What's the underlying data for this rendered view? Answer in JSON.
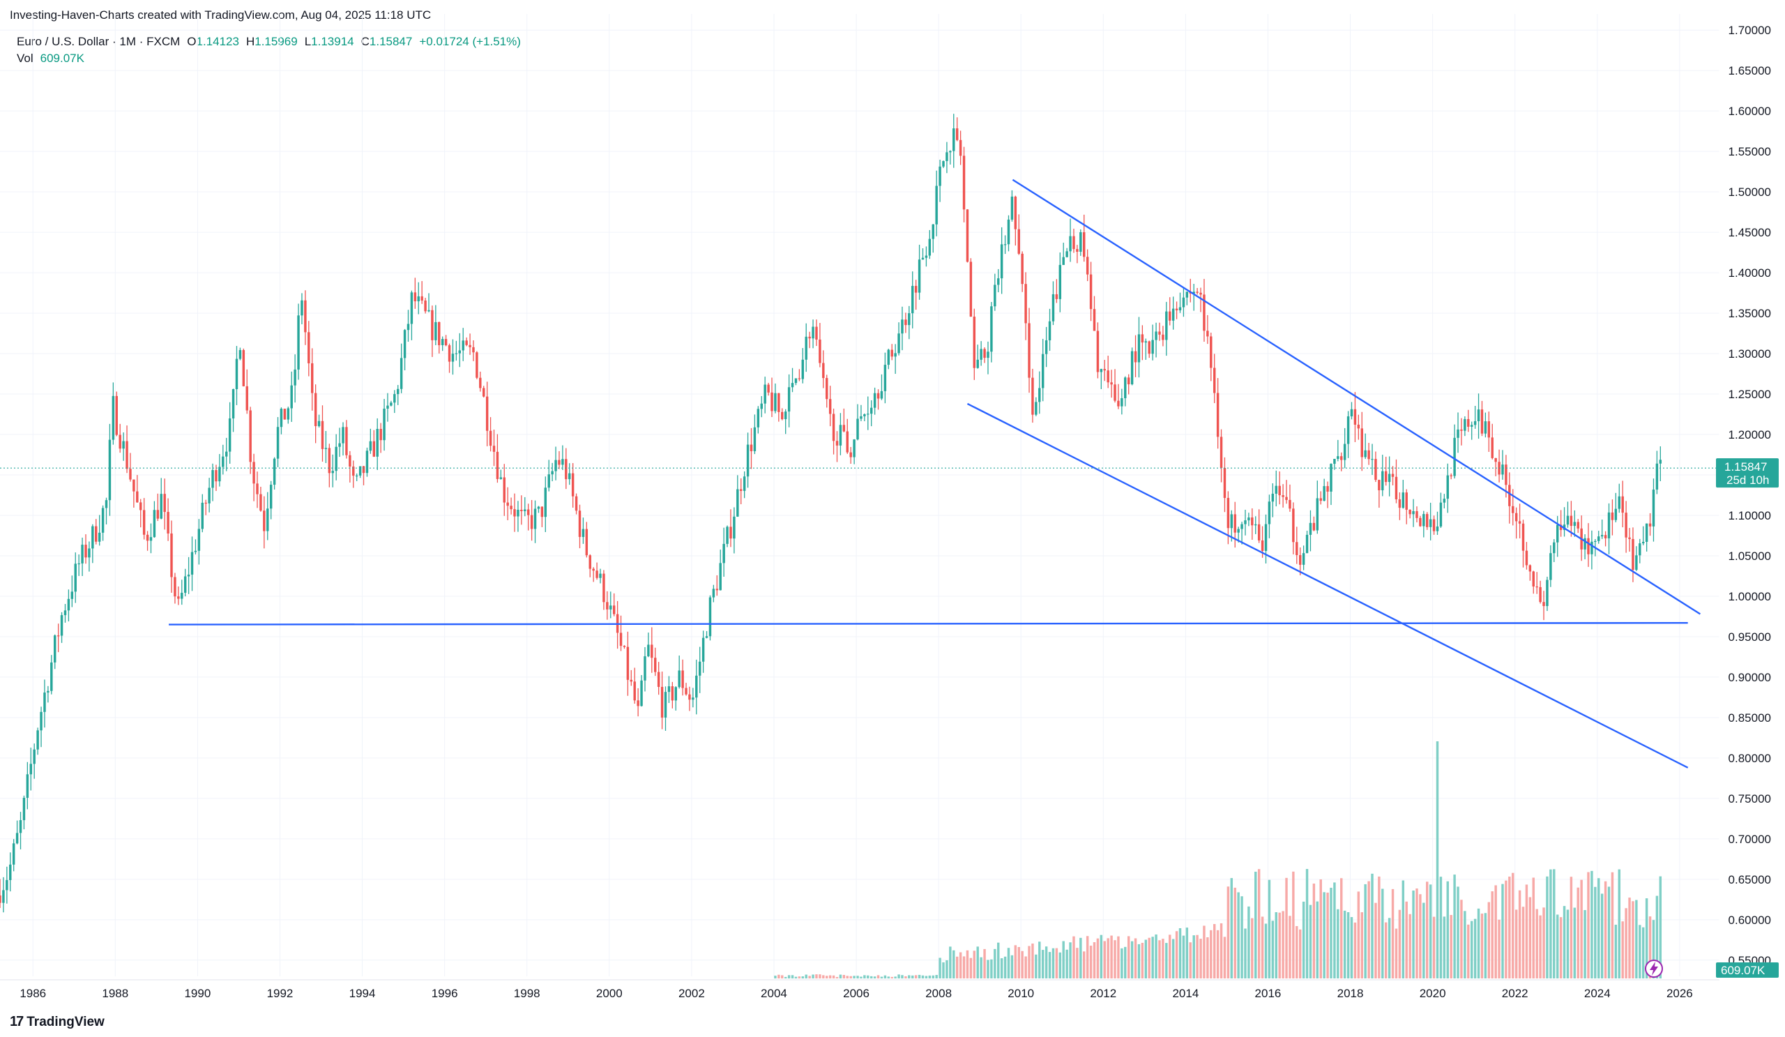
{
  "header": {
    "attribution": "Investing-Haven-Charts created with TradingView.com, Aug 04, 2025 11:18 UTC",
    "symbol": "Euro / U.S. Dollar · 1M · FXCM",
    "open_label": "O",
    "open": "1.14123",
    "high_label": "H",
    "high": "1.15969",
    "low_label": "L",
    "low": "1.13914",
    "close_label": "C",
    "close": "1.15847",
    "change": "+0.01724 (+1.51%)",
    "vol_label": "Vol",
    "vol": "609.07K"
  },
  "price_tag": {
    "price": "1.15847",
    "countdown": "25d 10h",
    "value": 1.15847
  },
  "volume_tag": "609.07K",
  "brand": "TradingView",
  "colors": {
    "up": "#26a69a",
    "down": "#ef5350",
    "trend": "#2962ff",
    "vol_up": "#7fcfc6",
    "vol_down": "#f7a9a7"
  },
  "chart_data": {
    "type": "candlestick",
    "symbol": "EURUSD",
    "interval": "1M",
    "y_ticks": [
      "0.55000",
      "0.60000",
      "0.65000",
      "0.70000",
      "0.75000",
      "0.80000",
      "0.85000",
      "0.90000",
      "0.95000",
      "1.00000",
      "1.05000",
      "1.10000",
      "1.15000",
      "1.20000",
      "1.25000",
      "1.30000",
      "1.35000",
      "1.40000",
      "1.45000",
      "1.50000",
      "1.55000",
      "1.60000",
      "1.65000",
      "1.70000"
    ],
    "ylim": [
      0.53,
      1.72
    ],
    "x_ticks": [
      "1986",
      "1988",
      "1990",
      "1992",
      "1994",
      "1996",
      "1998",
      "2000",
      "2002",
      "2004",
      "2006",
      "2008",
      "2010",
      "2012",
      "2014",
      "2016",
      "2018",
      "2020",
      "2022",
      "2024",
      "2026"
    ],
    "xlim": [
      1985.2,
      2026.9
    ],
    "price_path": [
      [
        1985.2,
        0.63
      ],
      [
        1985.5,
        0.66
      ],
      [
        1985.8,
        0.72
      ],
      [
        1986.2,
        0.84
      ],
      [
        1986.5,
        0.91
      ],
      [
        1986.8,
        0.98
      ],
      [
        1987.2,
        1.04
      ],
      [
        1987.6,
        1.08
      ],
      [
        1987.9,
        1.12
      ],
      [
        1988.0,
        1.24
      ],
      [
        1988.4,
        1.16
      ],
      [
        1988.8,
        1.07
      ],
      [
        1989.2,
        1.12
      ],
      [
        1989.6,
        0.98
      ],
      [
        1990.0,
        1.06
      ],
      [
        1990.4,
        1.14
      ],
      [
        1990.9,
        1.21
      ],
      [
        1991.1,
        1.33
      ],
      [
        1991.4,
        1.16
      ],
      [
        1991.7,
        1.09
      ],
      [
        1992.0,
        1.2
      ],
      [
        1992.4,
        1.25
      ],
      [
        1992.6,
        1.38
      ],
      [
        1992.9,
        1.22
      ],
      [
        1993.3,
        1.16
      ],
      [
        1993.6,
        1.2
      ],
      [
        1993.9,
        1.13
      ],
      [
        1994.4,
        1.19
      ],
      [
        1994.9,
        1.25
      ],
      [
        1995.3,
        1.37
      ],
      [
        1995.8,
        1.33
      ],
      [
        1996.3,
        1.3
      ],
      [
        1996.8,
        1.3
      ],
      [
        1997.0,
        1.25
      ],
      [
        1997.5,
        1.13
      ],
      [
        1998.0,
        1.09
      ],
      [
        1998.4,
        1.1
      ],
      [
        1998.8,
        1.17
      ],
      [
        1999.0,
        1.16
      ],
      [
        1999.5,
        1.06
      ],
      [
        2000.0,
        1.0
      ],
      [
        2000.4,
        0.93
      ],
      [
        2000.8,
        0.85
      ],
      [
        2001.0,
        0.94
      ],
      [
        2001.4,
        0.86
      ],
      [
        2001.8,
        0.9
      ],
      [
        2002.1,
        0.87
      ],
      [
        2002.5,
        0.98
      ],
      [
        2003.0,
        1.08
      ],
      [
        2003.4,
        1.17
      ],
      [
        2003.9,
        1.25
      ],
      [
        2004.3,
        1.22
      ],
      [
        2004.8,
        1.3
      ],
      [
        2005.0,
        1.34
      ],
      [
        2005.4,
        1.22
      ],
      [
        2005.9,
        1.18
      ],
      [
        2006.2,
        1.22
      ],
      [
        2006.8,
        1.28
      ],
      [
        2007.3,
        1.35
      ],
      [
        2007.9,
        1.46
      ],
      [
        2008.3,
        1.57
      ],
      [
        2008.6,
        1.56
      ],
      [
        2008.9,
        1.3
      ],
      [
        2009.2,
        1.29
      ],
      [
        2009.6,
        1.42
      ],
      [
        2009.9,
        1.49
      ],
      [
        2010.4,
        1.22
      ],
      [
        2010.9,
        1.37
      ],
      [
        2011.3,
        1.45
      ],
      [
        2011.6,
        1.43
      ],
      [
        2011.9,
        1.3
      ],
      [
        2012.4,
        1.23
      ],
      [
        2012.9,
        1.31
      ],
      [
        2013.2,
        1.3
      ],
      [
        2013.9,
        1.37
      ],
      [
        2014.4,
        1.38
      ],
      [
        2014.8,
        1.25
      ],
      [
        2015.1,
        1.08
      ],
      [
        2015.5,
        1.11
      ],
      [
        2015.9,
        1.06
      ],
      [
        2016.3,
        1.14
      ],
      [
        2016.9,
        1.05
      ],
      [
        2017.4,
        1.12
      ],
      [
        2017.9,
        1.19
      ],
      [
        2018.1,
        1.24
      ],
      [
        2018.5,
        1.16
      ],
      [
        2018.9,
        1.14
      ],
      [
        2019.4,
        1.12
      ],
      [
        2019.8,
        1.1
      ],
      [
        2020.2,
        1.09
      ],
      [
        2020.6,
        1.18
      ],
      [
        2021.0,
        1.22
      ],
      [
        2021.4,
        1.21
      ],
      [
        2021.7,
        1.16
      ],
      [
        2022.0,
        1.12
      ],
      [
        2022.4,
        1.05
      ],
      [
        2022.75,
        0.97
      ],
      [
        2023.0,
        1.07
      ],
      [
        2023.5,
        1.09
      ],
      [
        2023.8,
        1.06
      ],
      [
        2024.2,
        1.08
      ],
      [
        2024.6,
        1.11
      ],
      [
        2025.0,
        1.03
      ],
      [
        2025.3,
        1.08
      ],
      [
        2025.5,
        1.14
      ],
      [
        2025.6,
        1.16
      ]
    ],
    "trendlines": [
      {
        "from": [
          1989.3,
          0.965
        ],
        "to": [
          2026.2,
          0.967
        ]
      },
      {
        "from": [
          2009.8,
          1.515
        ],
        "to": [
          2026.5,
          0.978
        ]
      },
      {
        "from": [
          2008.7,
          1.238
        ],
        "to": [
          2026.2,
          0.788
        ]
      }
    ],
    "volume_spike": {
      "x": 2020.1,
      "label_height_fraction": 0.88
    }
  }
}
